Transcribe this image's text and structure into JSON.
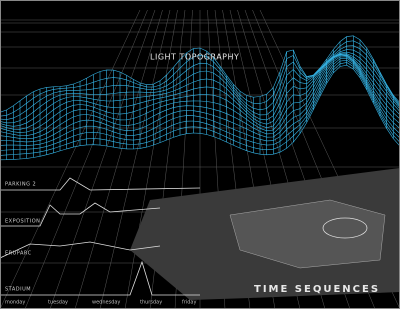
{
  "title": "LIGHT TOPOGRAPHY",
  "caption": "TIME SEQUENCES",
  "sequences": [
    "PARKING 2",
    "EXPOSITION",
    "ERUPARC",
    "STADIUM"
  ],
  "days": [
    "monday",
    "tuesday",
    "wednesday",
    "thursday",
    "friday"
  ]
}
